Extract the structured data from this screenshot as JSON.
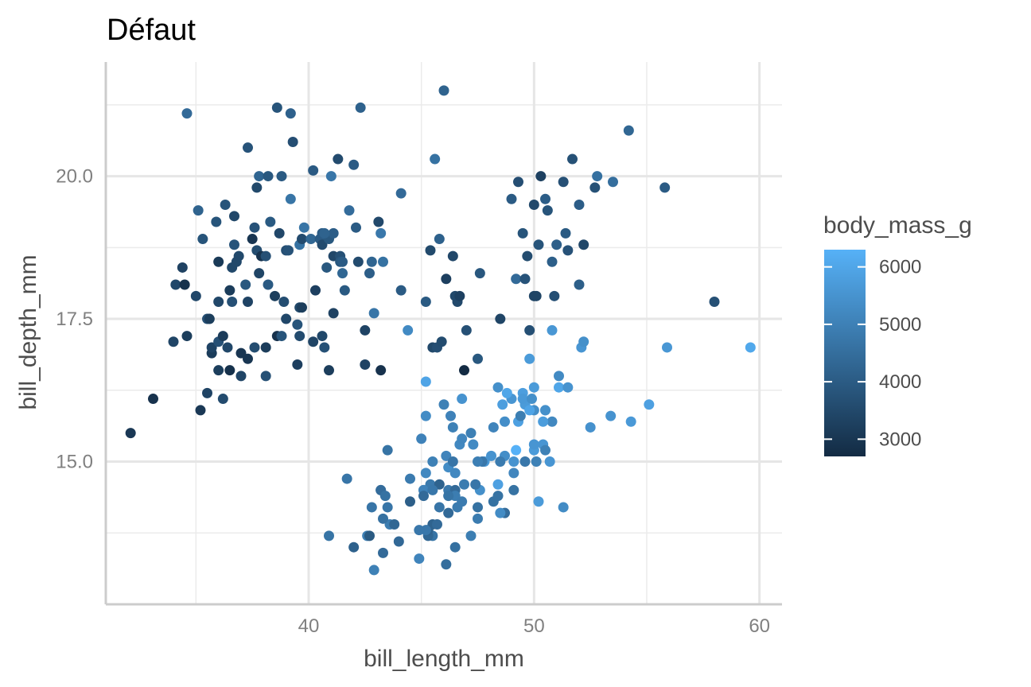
{
  "chart_data": {
    "type": "scatter",
    "title": "Défaut",
    "xlabel": "bill_length_mm",
    "ylabel": "bill_depth_mm",
    "xlim": [
      31,
      61
    ],
    "ylim": [
      12.5,
      22.0
    ],
    "x_ticks": [
      40,
      50,
      60
    ],
    "x_tick_labels": [
      "40",
      "50",
      "60"
    ],
    "y_ticks": [
      15.0,
      17.5,
      20.0
    ],
    "y_tick_labels": [
      "15.0",
      "17.5",
      "20.0"
    ],
    "grid": true,
    "color_scale": {
      "variable": "body_mass_g",
      "title": "body_mass_g",
      "min": 2700,
      "max": 6300,
      "low_color": "#132b43",
      "high_color": "#56b1f7",
      "ticks": [
        3000,
        4000,
        5000,
        6000
      ],
      "tick_labels": [
        "3000",
        "4000",
        "5000",
        "6000"
      ],
      "legend_position": "right"
    },
    "points": [
      [
        32.1,
        15.5,
        3050
      ],
      [
        33.1,
        16.1,
        2900
      ],
      [
        34.0,
        17.1,
        3400
      ],
      [
        34.1,
        18.1,
        3475
      ],
      [
        34.4,
        18.4,
        3325
      ],
      [
        34.5,
        18.1,
        2900
      ],
      [
        34.6,
        21.1,
        4400
      ],
      [
        34.6,
        17.2,
        3200
      ],
      [
        35.0,
        17.9,
        3450
      ],
      [
        35.1,
        19.4,
        4200
      ],
      [
        35.2,
        15.9,
        3050
      ],
      [
        35.3,
        18.9,
        3800
      ],
      [
        35.5,
        16.2,
        3350
      ],
      [
        35.5,
        17.5,
        3700
      ],
      [
        35.6,
        17.5,
        3200
      ],
      [
        35.7,
        16.9,
        3150
      ],
      [
        35.7,
        17.0,
        3350
      ],
      [
        35.9,
        19.2,
        3800
      ],
      [
        36.0,
        18.5,
        3100
      ],
      [
        36.0,
        17.8,
        3450
      ],
      [
        36.0,
        17.1,
        3700
      ],
      [
        36.0,
        16.6,
        3200
      ],
      [
        36.2,
        17.2,
        3150
      ],
      [
        36.2,
        16.1,
        3550
      ],
      [
        36.3,
        19.5,
        3800
      ],
      [
        36.4,
        17.0,
        3450
      ],
      [
        36.5,
        16.6,
        2850
      ],
      [
        36.5,
        18.0,
        3150
      ],
      [
        36.6,
        17.8,
        3700
      ],
      [
        36.6,
        18.4,
        3475
      ],
      [
        36.7,
        19.3,
        3450
      ],
      [
        36.7,
        18.8,
        3800
      ],
      [
        36.8,
        18.5,
        3500
      ],
      [
        36.9,
        18.6,
        3500
      ],
      [
        37.0,
        16.9,
        3000
      ],
      [
        37.0,
        16.5,
        3400
      ],
      [
        37.2,
        18.1,
        3900
      ],
      [
        37.3,
        20.5,
        3775
      ],
      [
        37.3,
        16.8,
        3000
      ],
      [
        37.3,
        17.8,
        3350
      ],
      [
        37.5,
        18.9,
        2975
      ],
      [
        37.6,
        17.0,
        3600
      ],
      [
        37.6,
        19.1,
        3750
      ],
      [
        37.7,
        19.8,
        3500
      ],
      [
        37.7,
        18.7,
        3600
      ],
      [
        37.8,
        18.3,
        3400
      ],
      [
        37.8,
        20.0,
        4250
      ],
      [
        37.9,
        18.6,
        2925
      ],
      [
        38.1,
        18.6,
        3700
      ],
      [
        38.1,
        17.0,
        3175
      ],
      [
        38.1,
        16.5,
        3700
      ],
      [
        38.2,
        18.1,
        3950
      ],
      [
        38.2,
        20.0,
        3900
      ],
      [
        38.3,
        19.2,
        3950
      ],
      [
        38.5,
        17.9,
        3200
      ],
      [
        38.6,
        21.2,
        3800
      ],
      [
        38.6,
        17.2,
        2900
      ],
      [
        38.7,
        19.0,
        3450
      ],
      [
        38.8,
        17.2,
        3800
      ],
      [
        38.8,
        20.0,
        3950
      ],
      [
        38.9,
        17.8,
        3625
      ],
      [
        39.0,
        17.5,
        3450
      ],
      [
        39.0,
        18.7,
        3650
      ],
      [
        39.1,
        18.7,
        3750
      ],
      [
        39.2,
        19.6,
        4675
      ],
      [
        39.2,
        21.1,
        4150
      ],
      [
        39.3,
        20.6,
        3650
      ],
      [
        39.5,
        17.4,
        3800
      ],
      [
        39.5,
        16.7,
        3250
      ],
      [
        39.6,
        17.7,
        3500
      ],
      [
        39.6,
        18.8,
        4600
      ],
      [
        39.6,
        17.2,
        3550
      ],
      [
        39.7,
        17.7,
        3200
      ],
      [
        39.7,
        18.9,
        3550
      ],
      [
        39.8,
        19.1,
        4650
      ],
      [
        40.1,
        18.9,
        4300
      ],
      [
        40.2,
        20.1,
        3975
      ],
      [
        40.2,
        17.1,
        3400
      ],
      [
        40.3,
        18.0,
        3250
      ],
      [
        40.5,
        18.9,
        4000
      ],
      [
        40.6,
        18.8,
        3550
      ],
      [
        40.6,
        19.0,
        4000
      ],
      [
        40.6,
        17.2,
        3475
      ],
      [
        40.7,
        17.0,
        3725
      ],
      [
        40.8,
        18.4,
        3900
      ],
      [
        40.9,
        16.6,
        3200
      ],
      [
        40.9,
        18.9,
        3900
      ],
      [
        41.0,
        20.0,
        4725
      ],
      [
        41.1,
        17.6,
        3325
      ],
      [
        41.1,
        18.6,
        3450
      ],
      [
        41.1,
        19.0,
        4050
      ],
      [
        41.3,
        20.3,
        3550
      ],
      [
        41.4,
        18.6,
        3700
      ],
      [
        41.4,
        18.5,
        3875
      ],
      [
        41.5,
        18.3,
        4300
      ],
      [
        41.6,
        18.0,
        3950
      ],
      [
        41.8,
        19.4,
        4450
      ],
      [
        42.0,
        20.2,
        4000
      ],
      [
        42.1,
        19.1,
        4000
      ],
      [
        42.2,
        18.5,
        3550
      ],
      [
        42.3,
        21.2,
        4150
      ],
      [
        42.5,
        17.3,
        3350
      ],
      [
        42.5,
        16.7,
        3350
      ],
      [
        42.7,
        18.3,
        4075
      ],
      [
        42.8,
        18.5,
        4250
      ],
      [
        42.9,
        17.6,
        4700
      ],
      [
        43.1,
        19.2,
        3500
      ],
      [
        43.2,
        16.6,
        2900
      ],
      [
        43.2,
        19.0,
        4775
      ],
      [
        43.3,
        18.5,
        4600
      ],
      [
        44.1,
        19.7,
        4400
      ],
      [
        44.1,
        18.0,
        4000
      ],
      [
        45.6,
        20.3,
        4600
      ],
      [
        45.8,
        18.9,
        4150
      ],
      [
        46.0,
        21.5,
        4200
      ],
      [
        46.4,
        18.6,
        3450
      ],
      [
        46.5,
        17.9,
        3500
      ],
      [
        46.6,
        17.8,
        3500
      ],
      [
        46.9,
        16.6,
        2700
      ],
      [
        47.0,
        17.3,
        3700
      ],
      [
        47.6,
        18.3,
        3875
      ],
      [
        45.4,
        18.7,
        3525
      ],
      [
        45.5,
        17.0,
        3500
      ],
      [
        45.2,
        17.8,
        3950
      ],
      [
        45.7,
        17.0,
        3650
      ],
      [
        46.1,
        18.2,
        3250
      ],
      [
        46.7,
        17.9,
        3300
      ],
      [
        47.5,
        16.8,
        3900
      ],
      [
        48.5,
        17.5,
        3400
      ],
      [
        49.2,
        18.2,
        4400
      ],
      [
        49.5,
        19.0,
        3800
      ],
      [
        49.6,
        18.2,
        3775
      ],
      [
        49.7,
        18.6,
        3600
      ],
      [
        50.0,
        19.5,
        3500
      ],
      [
        50.2,
        18.8,
        3800
      ],
      [
        50.3,
        20.0,
        3300
      ],
      [
        50.5,
        19.6,
        4050
      ],
      [
        50.6,
        19.4,
        3800
      ],
      [
        50.8,
        18.5,
        4100
      ],
      [
        51.0,
        18.8,
        4100
      ],
      [
        51.3,
        19.9,
        3700
      ],
      [
        51.4,
        19.0,
        3950
      ],
      [
        51.5,
        18.7,
        3750
      ],
      [
        51.7,
        20.3,
        3725
      ],
      [
        52.0,
        18.1,
        4100
      ],
      [
        52.0,
        19.5,
        4050
      ],
      [
        52.2,
        18.8,
        3450
      ],
      [
        52.7,
        19.8,
        3725
      ],
      [
        53.5,
        19.9,
        4500
      ],
      [
        54.2,
        20.8,
        4300
      ],
      [
        55.8,
        19.8,
        4000
      ],
      [
        58.0,
        17.8,
        3700
      ],
      [
        49.0,
        19.6,
        4000
      ],
      [
        50.9,
        17.9,
        3675
      ],
      [
        52.8,
        20.0,
        4550
      ],
      [
        50.0,
        17.9,
        3400
      ],
      [
        49.3,
        19.9,
        3650
      ],
      [
        45.9,
        17.1,
        3575
      ],
      [
        49.8,
        17.3,
        3675
      ],
      [
        50.1,
        17.9,
        3400
      ],
      [
        43.2,
        14.5,
        4450
      ],
      [
        46.1,
        13.2,
        4500
      ],
      [
        50.0,
        16.3,
        5700
      ],
      [
        48.7,
        14.1,
        4450
      ],
      [
        50.0,
        15.2,
        5700
      ],
      [
        47.6,
        14.5,
        5400
      ],
      [
        46.5,
        13.5,
        4550
      ],
      [
        45.4,
        14.6,
        4800
      ],
      [
        46.7,
        15.3,
        5200
      ],
      [
        43.3,
        13.4,
        4400
      ],
      [
        46.8,
        15.4,
        5150
      ],
      [
        40.9,
        13.7,
        4650
      ],
      [
        49.0,
        16.1,
        5550
      ],
      [
        45.5,
        13.7,
        4650
      ],
      [
        48.4,
        14.6,
        5850
      ],
      [
        45.8,
        14.6,
        4200
      ],
      [
        49.3,
        15.7,
        5850
      ],
      [
        42.0,
        13.5,
        4150
      ],
      [
        49.2,
        15.2,
        6300
      ],
      [
        46.2,
        14.5,
        4800
      ],
      [
        48.7,
        15.1,
        5350
      ],
      [
        50.2,
        14.3,
        5700
      ],
      [
        45.1,
        14.5,
        5000
      ],
      [
        46.5,
        14.5,
        4400
      ],
      [
        46.3,
        15.8,
        5050
      ],
      [
        42.9,
        13.1,
        5000
      ],
      [
        46.1,
        15.1,
        5100
      ],
      [
        44.5,
        14.3,
        4100
      ],
      [
        47.8,
        15.0,
        5650
      ],
      [
        48.2,
        14.3,
        4600
      ],
      [
        50.0,
        15.3,
        5550
      ],
      [
        47.3,
        15.3,
        5250
      ],
      [
        42.8,
        14.2,
        4700
      ],
      [
        45.1,
        14.5,
        5050
      ],
      [
        59.6,
        17.0,
        6050
      ],
      [
        49.1,
        14.8,
        5150
      ],
      [
        48.4,
        16.3,
        5400
      ],
      [
        42.6,
        13.7,
        4950
      ],
      [
        44.4,
        17.3,
        5250
      ],
      [
        44.0,
        13.6,
        4350
      ],
      [
        48.7,
        15.7,
        5350
      ],
      [
        42.7,
        13.7,
        3950
      ],
      [
        49.6,
        16.0,
        5700
      ],
      [
        45.3,
        13.7,
        4300
      ],
      [
        49.6,
        15.0,
        4750
      ],
      [
        50.5,
        15.9,
        5550
      ],
      [
        43.6,
        13.9,
        4900
      ],
      [
        45.5,
        13.9,
        4200
      ],
      [
        50.5,
        15.9,
        5400
      ],
      [
        44.9,
        13.3,
        5100
      ],
      [
        45.2,
        15.8,
        5300
      ],
      [
        46.6,
        14.2,
        4850
      ],
      [
        48.5,
        14.1,
        5300
      ],
      [
        45.1,
        14.4,
        4400
      ],
      [
        50.1,
        15.0,
        5000
      ],
      [
        46.5,
        14.4,
        4900
      ],
      [
        45.0,
        15.4,
        5050
      ],
      [
        43.8,
        13.9,
        4300
      ],
      [
        45.5,
        15.0,
        5000
      ],
      [
        43.2,
        14.5,
        4450
      ],
      [
        50.4,
        15.3,
        5550
      ],
      [
        45.3,
        13.8,
        4200
      ],
      [
        46.2,
        14.9,
        5300
      ],
      [
        45.7,
        13.9,
        4400
      ],
      [
        54.3,
        15.7,
        5650
      ],
      [
        45.8,
        14.2,
        4700
      ],
      [
        49.8,
        16.8,
        5700
      ],
      [
        46.2,
        14.4,
        4650
      ],
      [
        49.5,
        16.2,
        5800
      ],
      [
        43.5,
        14.2,
        4700
      ],
      [
        50.7,
        15.0,
        5550
      ],
      [
        47.7,
        15.0,
        4750
      ],
      [
        46.4,
        15.6,
        5000
      ],
      [
        48.2,
        15.6,
        5100
      ],
      [
        46.5,
        14.8,
        5200
      ],
      [
        46.4,
        15.0,
        4700
      ],
      [
        48.6,
        16.0,
        5800
      ],
      [
        47.5,
        14.2,
        4600
      ],
      [
        51.1,
        16.3,
        6000
      ],
      [
        45.2,
        13.8,
        4750
      ],
      [
        45.2,
        16.4,
        5950
      ],
      [
        49.1,
        14.5,
        4625
      ],
      [
        52.5,
        15.6,
        5450
      ],
      [
        47.4,
        14.6,
        4725
      ],
      [
        50.0,
        15.9,
        5350
      ],
      [
        44.9,
        13.8,
        4750
      ],
      [
        50.8,
        17.3,
        5600
      ],
      [
        43.4,
        14.4,
        4600
      ],
      [
        51.3,
        14.2,
        5300
      ],
      [
        47.5,
        14.0,
        4875
      ],
      [
        52.1,
        17.0,
        5550
      ],
      [
        47.5,
        15.0,
        4950
      ],
      [
        52.2,
        17.1,
        5400
      ],
      [
        45.5,
        14.5,
        4750
      ],
      [
        49.5,
        16.1,
        5650
      ],
      [
        44.5,
        14.7,
        4850
      ],
      [
        50.8,
        15.7,
        5200
      ],
      [
        49.4,
        15.8,
        4925
      ],
      [
        46.9,
        14.6,
        4875
      ],
      [
        48.4,
        14.4,
        4625
      ],
      [
        51.1,
        16.5,
        5250
      ],
      [
        48.5,
        15.0,
        4850
      ],
      [
        55.9,
        17.0,
        5600
      ],
      [
        47.2,
        15.5,
        4975
      ],
      [
        49.1,
        15.0,
        5500
      ],
      [
        46.8,
        16.1,
        5500
      ],
      [
        41.7,
        14.7,
        4700
      ],
      [
        53.4,
        15.8,
        5500
      ],
      [
        43.3,
        14.0,
        4575
      ],
      [
        48.1,
        15.1,
        5500
      ],
      [
        50.5,
        15.2,
        5000
      ],
      [
        49.8,
        15.9,
        5950
      ],
      [
        43.5,
        15.2,
        4650
      ],
      [
        51.5,
        16.3,
        5500
      ],
      [
        46.2,
        14.1,
        4375
      ],
      [
        55.1,
        16.0,
        5850
      ],
      [
        48.8,
        16.2,
        6000
      ],
      [
        47.2,
        13.7,
        4925
      ],
      [
        46.8,
        14.3,
        4850
      ],
      [
        50.4,
        15.7,
        5750
      ],
      [
        45.2,
        14.8,
        5200
      ],
      [
        49.9,
        16.1,
        5400
      ],
      [
        46.0,
        16.0,
        5000
      ],
      [
        40.7,
        19.0,
        4200
      ],
      [
        41.5,
        18.5,
        4000
      ]
    ]
  }
}
